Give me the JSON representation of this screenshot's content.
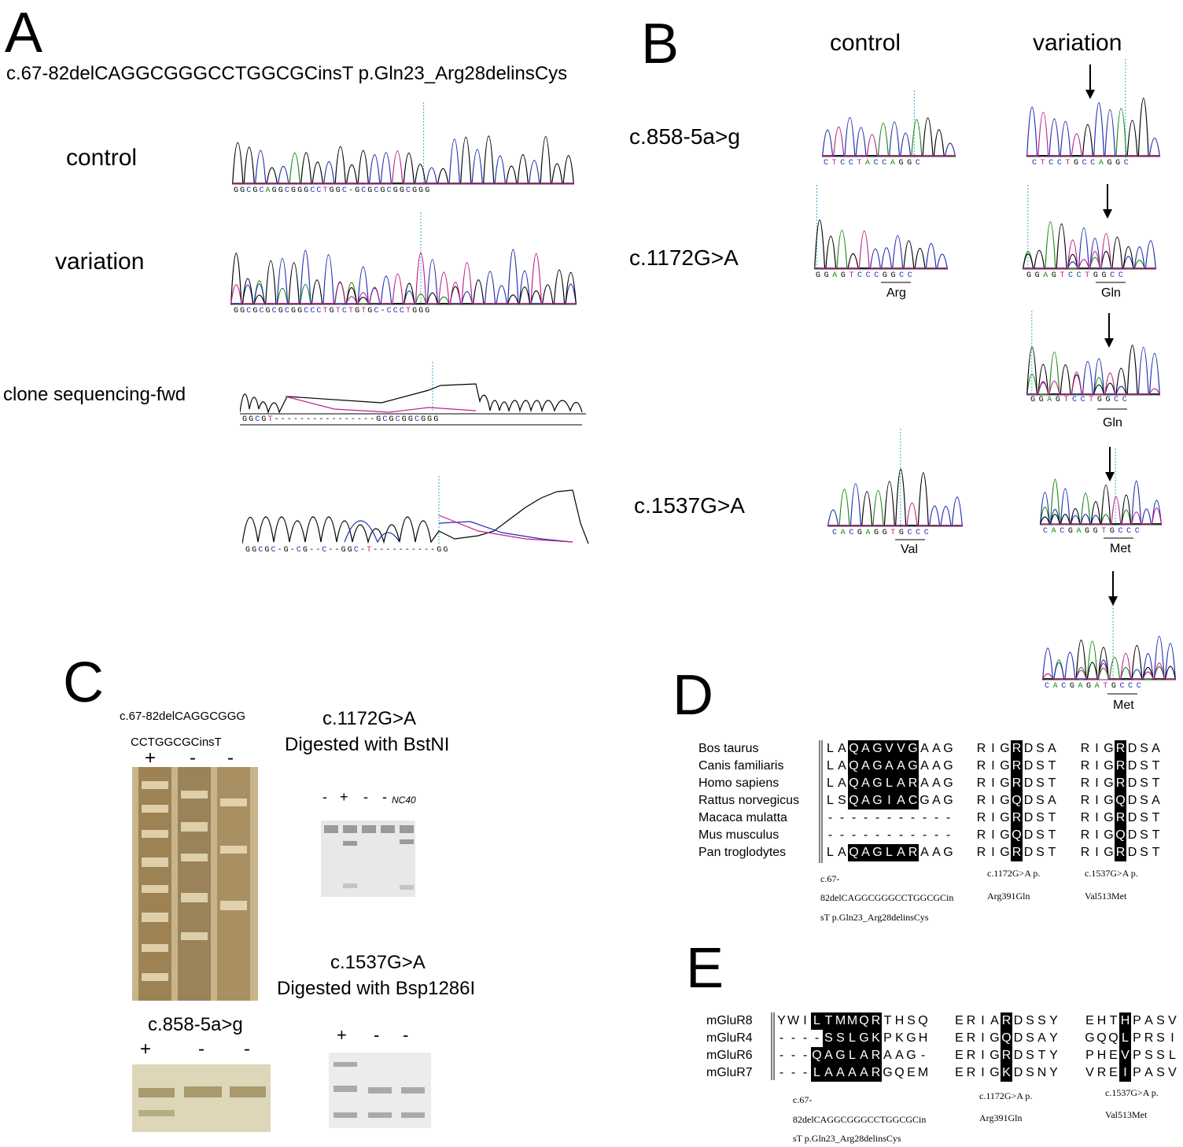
{
  "panelA": {
    "letter": "A",
    "title": "c.67-82delCAGGCGGGCCTGGCGCinsT p.Gln23_Arg28delinsCys",
    "rows": [
      {
        "label": "control",
        "seq": "GGCGCAGGCGGGCCTGGC-GCGCGCGGCGGG"
      },
      {
        "label": "variation",
        "seq": "GGCGCGCGCGGCCCTGTCTGTGC-CCCTGGG"
      },
      {
        "label": "clone sequencing-fwd",
        "seq": "GGCGT----------------GCGCGGCGGG"
      },
      {
        "label": "",
        "seq": "GGCGC-G-CG--C--GGC-T----------GG"
      }
    ]
  },
  "panelB": {
    "letter": "B",
    "col_control": "control",
    "col_variation": "variation",
    "rows": [
      {
        "label": "c.858-5a>g",
        "ctrl_seq": "CTCCTACCAGGC",
        "var_seq": "CTCCTGCCAGGC",
        "ctrl_aa": "",
        "var_aa": ""
      },
      {
        "label": "c.1172G>A",
        "ctrl_seq": "GGAGTCCCGGCC",
        "var_seq": "GGAGTCCTGGCC",
        "ctrl_aa": "Arg",
        "var_aa": "Gln"
      },
      {
        "label": "",
        "ctrl_seq": "",
        "var_seq": "GGAGTCCTGGCC",
        "ctrl_aa": "",
        "var_aa": "Gln"
      },
      {
        "label": "c.1537G>A",
        "ctrl_seq": "CACGAGGTGCCC",
        "var_seq": "CACGAGGTGCCC",
        "ctrl_aa": "Val",
        "var_aa": "Met"
      },
      {
        "label": "",
        "ctrl_seq": "",
        "var_seq": "CACGAGATGCCC",
        "ctrl_aa": "",
        "var_aa": "Met"
      }
    ]
  },
  "panelC": {
    "letter": "C",
    "gel1_title_line1": "c.67-82delCAGGCGGG",
    "gel1_title_line2": "CCTGGCGCinsT",
    "gel1_lanes": [
      "+",
      "-",
      "-"
    ],
    "gel2_title_line1": "c.1172G>A",
    "gel2_title_line2": "Digested with BstNI",
    "gel2_lanes": [
      "-",
      "+",
      "-",
      "-"
    ],
    "gel2_nc": "NC40",
    "gel3_title_line1": "c.1537G>A",
    "gel3_title_line2": "Digested with Bsp1286I",
    "gel3_lanes": [
      "+",
      "-",
      "-"
    ],
    "gel4_title": "c.858-5a>g",
    "gel4_lanes": [
      "+",
      "-",
      "-"
    ]
  },
  "panelD": {
    "letter": "D",
    "species": [
      "Bos taurus",
      "Canis familiaris",
      "Homo sapiens",
      "Rattus norvegicus",
      "Macaca mulatta",
      "Mus musculus",
      "Pan troglodytes"
    ],
    "block1": [
      "LAQAGVVGAAG",
      "LAQAGAAGAAG",
      "LAQAGLARAAG",
      "LSQAGIACGAG",
      "-----------",
      "-----------",
      "LAQAGLARAAG"
    ],
    "block1_hl": [
      2,
      7
    ],
    "block2": [
      "RIGRDSA",
      "RIGRDST",
      "RIGRDST",
      "RIGQDSA",
      "RIGRDST",
      "RIGQDST",
      "RIGRDST"
    ],
    "block2_hl": [
      3,
      3
    ],
    "block3": [
      "RIGRDSA",
      "RIGRDST",
      "RIGRDST",
      "RIGQDSA",
      "RIGRDST",
      "RIGQDST",
      "RIGRDST"
    ],
    "block3_hl": [
      3,
      3
    ],
    "note1_l1": "c.67-",
    "note1_l2": "82delCAGGCGGGCCTGGCGCin",
    "note1_l3": "sT p.Gln23_Arg28delinsCys",
    "note2_l1": "c.1172G>A p.",
    "note2_l2": "Arg391Gln",
    "note3_l1": "c.1537G>A p.",
    "note3_l2": "Val513Met"
  },
  "panelE": {
    "letter": "E",
    "receptors": [
      "mGluR8",
      "mGluR4",
      "mGluR6",
      "mGluR7"
    ],
    "block1": [
      "YWILTMMQRTHSQ",
      "----SSLGKPKGH",
      "---QAGLARAAG-",
      "---LAAAARGQEM"
    ],
    "block1_hl": [
      3,
      8
    ],
    "block2": [
      "ERIARDSSY",
      "ERIGQDSAY",
      "ERIGRDSTY",
      "ERIGKDSNY"
    ],
    "block2_hl": [
      4,
      4
    ],
    "block3": [
      "EHTHPASV",
      "GQQLPRSI",
      "PHEVPSSL",
      "VREIPASV"
    ],
    "block3_hl": [
      3,
      3
    ],
    "note1_l1": "c.67-",
    "note1_l2": "82delCAGGCGGGCCTGGCGCin",
    "note1_l3": "sT p.Gln23_Arg28delinsCys",
    "note2_l1": "c.1172G>A p.",
    "note2_l2": "Arg391Gln",
    "note3_l1": "c.1537G>A p.",
    "note3_l2": "Val513Met"
  },
  "colors": {
    "base_A": "#1a8a1a",
    "base_C": "#1f2fb0",
    "base_G": "#000000",
    "base_T": "#c0208a",
    "cursor": "#33aacc",
    "gel_brown": "#a08a5a",
    "gel_gray": "#e4e4e4"
  }
}
